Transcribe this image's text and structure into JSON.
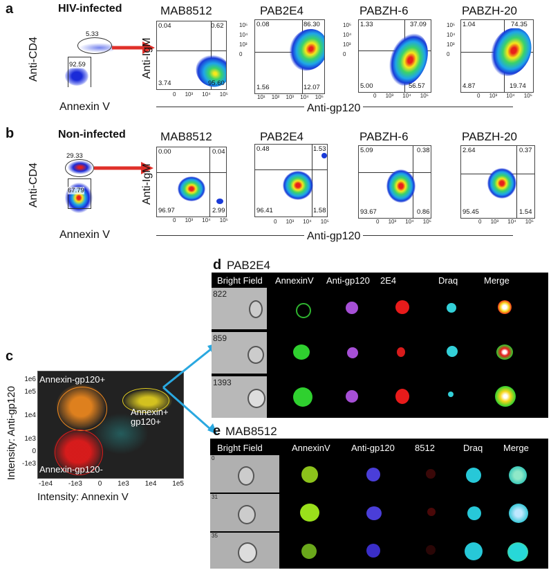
{
  "panel_a": {
    "label": "a",
    "title": "HIV-infected",
    "gate_upper": "5.33",
    "gate_lower": "92.59",
    "ylabel": "Anti-CD4",
    "xlabel": "Annexin V",
    "plots": [
      {
        "name": "MAB8512",
        "ul": "0.04",
        "ur": "0.62",
        "ll": "3.74",
        "lr": "95.60"
      },
      {
        "name": "PAB2E4",
        "ul": "0.08",
        "ur": "86.30",
        "ll": "1.56",
        "lr": "12.07"
      },
      {
        "name": "PABZH-6",
        "ul": "1.33",
        "ur": "37.09",
        "ll": "5.00",
        "lr": "56.57"
      },
      {
        "name": "PABZH-20",
        "ul": "1.04",
        "ur": "74.35",
        "ll": "4.87",
        "lr": "19.74"
      }
    ],
    "plot_ylabel": "Anti-IgM",
    "plot_xlabel": "Anti-gp120"
  },
  "panel_b": {
    "label": "b",
    "title": "Non-infected",
    "gate_upper": "29.33",
    "gate_lower": "67.79",
    "ylabel": "Anti-CD4",
    "xlabel": "Annexin V",
    "plots": [
      {
        "name": "MAB8512",
        "ul": "0.00",
        "ur": "0.04",
        "ll": "96.97",
        "lr": "2.99"
      },
      {
        "name": "PAB2E4",
        "ul": "0.48",
        "ur": "1.53",
        "ll": "96.41",
        "lr": "1.58"
      },
      {
        "name": "PABZH-6",
        "ul": "5.09",
        "ur": "0.38",
        "ll": "93.67",
        "lr": "0.86"
      },
      {
        "name": "PABZH-20",
        "ul": "2.64",
        "ur": "0.37",
        "ll": "95.45",
        "lr": "1.54"
      }
    ],
    "plot_ylabel": "Anti-IgM",
    "plot_xlabel": "Anti-gp120"
  },
  "ticks": {
    "y": [
      "10⁵",
      "10⁴",
      "10³",
      "0"
    ],
    "x": [
      "0",
      "10³",
      "10⁴",
      "10⁵"
    ],
    "x_wide": [
      "10¹",
      "10²",
      "10³",
      "10⁴",
      "10⁵"
    ]
  },
  "panel_c": {
    "label": "c",
    "ylabel": "Intensity: Anti-gp120",
    "xlabel": "Intensity: Annexin V",
    "yticks": [
      "1e6",
      "1e5",
      "1e4",
      "1e3",
      "0",
      "-1e3"
    ],
    "xticks": [
      "-1e4",
      "-1e3",
      "0",
      "1e3",
      "1e4",
      "1e5"
    ],
    "gate_orange": "Annexin-gp120+",
    "gate_yellow_1": "Annexin+",
    "gate_yellow_2": "gp120+",
    "gate_red": "Annexin-gp120-"
  },
  "panel_d": {
    "label": "d",
    "title": "PAB2E4",
    "columns": [
      "Bright Field",
      "AnnexinV",
      "Anti-gp120",
      "2E4",
      "Draq",
      "Merge"
    ],
    "rows": [
      "822",
      "859",
      "1393"
    ]
  },
  "panel_e": {
    "label": "e",
    "title": "MAB8512",
    "columns": [
      "Bright Field",
      "AnnexinV",
      "Anti-gp120",
      "8512",
      "Draq",
      "Merge"
    ],
    "rows": [
      "0",
      "31",
      "35"
    ]
  },
  "colors": {
    "arrow_red": "#e0302a",
    "arrow_blue": "#2aa8e0",
    "gate_orange": "#f28a1e",
    "gate_yellow": "#e6d21f",
    "gate_red": "#e01b1b"
  }
}
